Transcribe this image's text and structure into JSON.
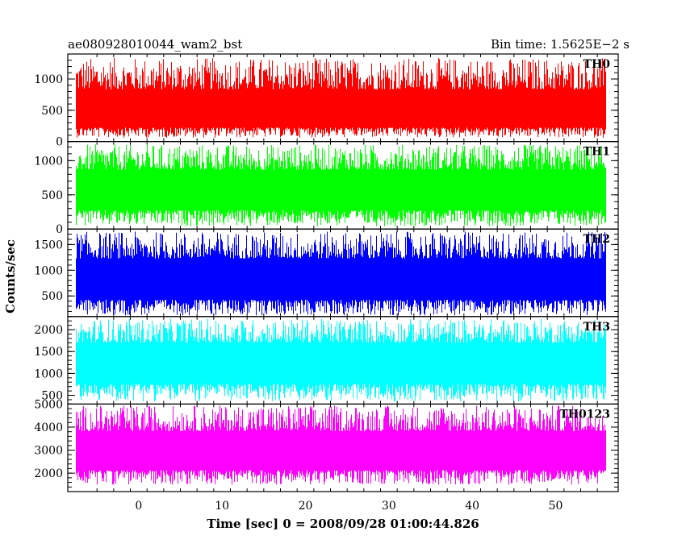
{
  "header": {
    "left": "ae080928010044_wam2_bst",
    "right": "Bin time: 1.5625E−2 s"
  },
  "chart_data": {
    "type": "line",
    "xlabel": "Time [sec] 0 = 2008/09/28 01:00:44.826",
    "ylabel": "Counts/sec",
    "xlim": [
      -8.5,
      57.5
    ],
    "x_data_range": [
      -7.5,
      56.0
    ],
    "x_ticks": [
      0,
      10,
      20,
      30,
      40,
      50
    ],
    "x_tick_labels": [
      "0",
      "10",
      "20",
      "30",
      "40",
      "50"
    ],
    "panels": [
      {
        "name": "TH0",
        "color": "#ff0000",
        "ylim": [
          0,
          1400
        ],
        "y_ticks": [
          0,
          500,
          1000
        ],
        "y_tick_labels": [
          "0",
          "500",
          "1000"
        ],
        "band": {
          "min": 60,
          "mid": 420,
          "max": 1340
        }
      },
      {
        "name": "TH1",
        "color": "#00ff00",
        "ylim": [
          0,
          1280
        ],
        "y_ticks": [
          0,
          500,
          1000
        ],
        "y_tick_labels": [
          "0",
          "500",
          "1000"
        ],
        "band": {
          "min": 40,
          "mid": 560,
          "max": 1240
        }
      },
      {
        "name": "TH2",
        "color": "#0000ff",
        "ylim": [
          100,
          1800
        ],
        "y_ticks": [
          500,
          1000,
          1500
        ],
        "y_tick_labels": [
          "500",
          "1000",
          "1500"
        ],
        "band": {
          "min": 120,
          "mid": 800,
          "max": 1750
        }
      },
      {
        "name": "TH3",
        "color": "#00ffff",
        "ylim": [
          300,
          2300
        ],
        "y_ticks": [
          500,
          1000,
          1500,
          2000
        ],
        "y_tick_labels": [
          "500",
          "1000",
          "1500",
          "2000"
        ],
        "band": {
          "min": 360,
          "mid": 1250,
          "max": 2250
        }
      },
      {
        "name": "TH0123",
        "color": "#ff00ff",
        "ylim": [
          1200,
          5000
        ],
        "y_ticks": [
          2000,
          3000,
          4000,
          5000
        ],
        "y_tick_labels": [
          "2000",
          "3000",
          "4000",
          "5000"
        ],
        "band": {
          "min": 1500,
          "mid": 2900,
          "max": 4950
        }
      }
    ]
  }
}
